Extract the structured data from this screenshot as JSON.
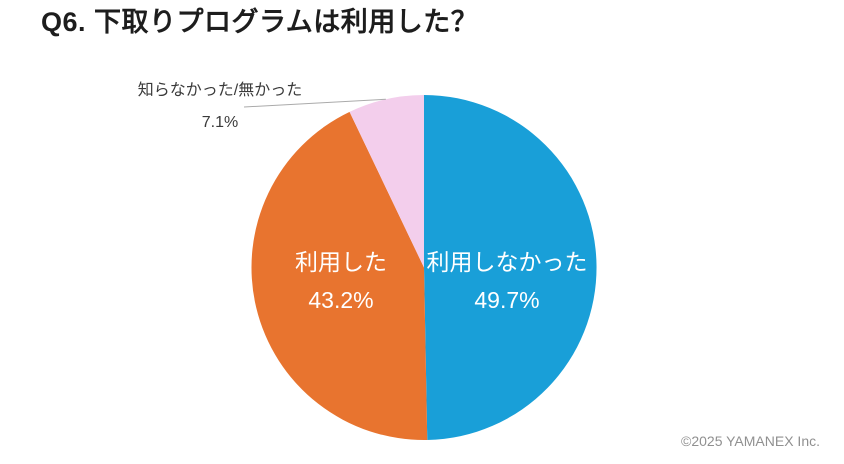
{
  "title": "Q6. 下取りプログラムは利用した？",
  "footer": "©2025 YAMANEX Inc.",
  "colors": {
    "background": "#ffffff",
    "title_text": "#1d1d1d",
    "inside_label_text": "#ffffff",
    "outside_label_text": "#3a3a3a",
    "leader_line": "#aaaaaa",
    "footer_text": "#909090"
  },
  "chart_data": {
    "type": "pie",
    "title": "Q6. 下取りプログラムは利用した？",
    "start_angle_deg": 0,
    "direction": "clockwise",
    "legend": "none",
    "slices": [
      {
        "label": "利用しなかった",
        "value": 49.7,
        "display_percent": "49.7%",
        "color": "#199fd8",
        "label_position": "inside",
        "label_color": "#ffffff"
      },
      {
        "label": "利用した",
        "value": 43.2,
        "display_percent": "43.2%",
        "color": "#e8742f",
        "label_position": "inside",
        "label_color": "#ffffff"
      },
      {
        "label": "知らなかった/無かった",
        "value": 7.1,
        "display_percent": "7.1%",
        "color": "#f3ceec",
        "label_position": "outside",
        "label_color": "#3a3a3a"
      }
    ]
  }
}
